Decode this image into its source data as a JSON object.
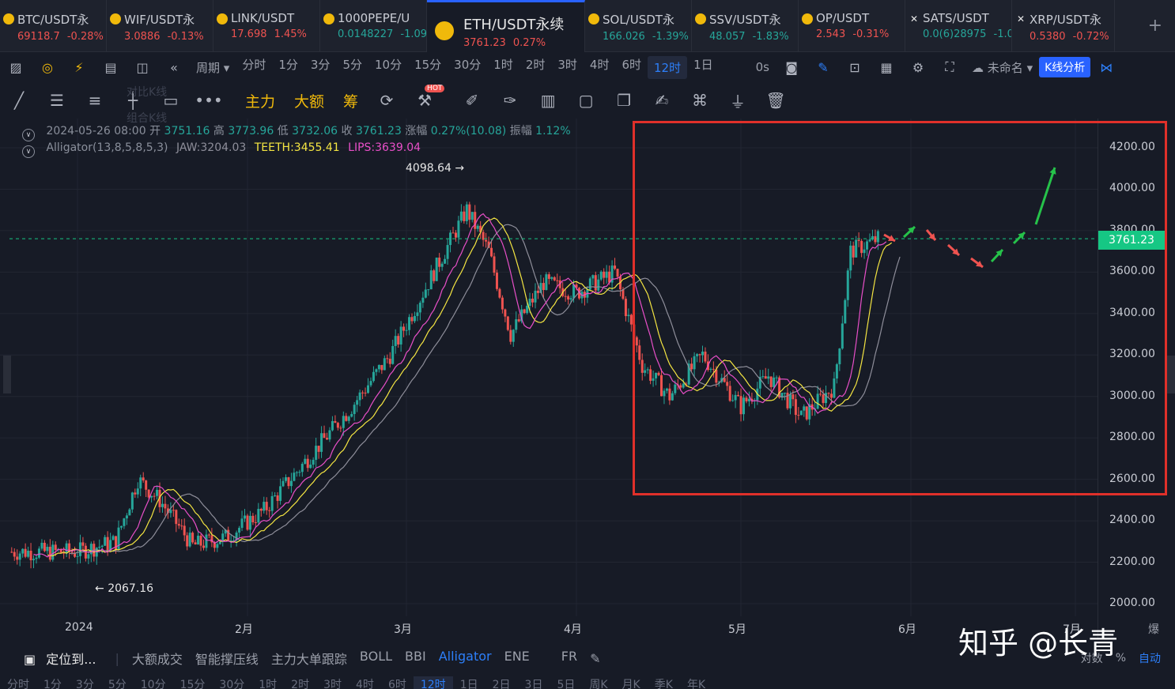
{
  "tickers": [
    {
      "name": "BTC/USDT永",
      "price": "69118.7",
      "change": "-0.28%",
      "dir": "down"
    },
    {
      "name": "WIF/USDT永",
      "price": "3.0886",
      "change": "-0.13%",
      "dir": "down"
    },
    {
      "name": "LINK/USDT",
      "price": "17.698",
      "change": "1.45%",
      "dir": "down"
    },
    {
      "name": "1000PEPE/U",
      "price": "0.0148227",
      "change": "-1.09",
      "dir": "up"
    },
    {
      "name": "ETH/USDT永续",
      "price": "3761.23",
      "change": "0.27%",
      "dir": "down"
    },
    {
      "name": "SOL/USDT永",
      "price": "166.026",
      "change": "-1.39%",
      "dir": "up"
    },
    {
      "name": "SSV/USDT永",
      "price": "48.057",
      "change": "-1.83%",
      "dir": "up"
    },
    {
      "name": "OP/USDT",
      "price": "2.543",
      "change": "-0.31%",
      "dir": "down"
    },
    {
      "name": "SATS/USDT",
      "price": "0.0(6)28975",
      "change": "-1.0",
      "dir": "up"
    },
    {
      "name": "XRP/USDT永",
      "price": "0.5380",
      "change": "-0.72%",
      "dir": "down"
    }
  ],
  "add_tab": "+",
  "toolbar1": {
    "period_label": "周期",
    "periods": [
      "分时",
      "1分",
      "3分",
      "5分",
      "10分",
      "15分",
      "30分",
      "1时",
      "2时",
      "3时",
      "4时",
      "6时",
      "12时",
      "1日"
    ],
    "selected_period": "12时",
    "countdown": "0s",
    "layout_name": "未命名",
    "kline_analysis": "K线分析"
  },
  "toolbar2": {
    "main_force": "主力",
    "big_amount": "大额",
    "chip": "筹",
    "hot": "HOT"
  },
  "ghost_labels": {
    "compare": "对比K线",
    "combo": "组合K线"
  },
  "ohlc": {
    "date": "2024-05-26 08:00",
    "open_label": "开",
    "open": "3751.16",
    "high_label": "高",
    "high": "3773.96",
    "low_label": "低",
    "low": "3732.06",
    "close_label": "收",
    "close": "3761.23",
    "change_label": "涨幅",
    "change": "0.27%(10.08)",
    "amp_label": "振幅",
    "amp": "1.12%"
  },
  "alligator": {
    "name": "Alligator(13,8,5,8,5,3)",
    "jaw": "JAW:3204.03",
    "teeth": "TEETH:3455.41",
    "lips": "LIPS:3639.04",
    "colors": {
      "jaw": "#8e8e9a",
      "teeth": "#f5e642",
      "lips": "#e84fc8"
    }
  },
  "chart_data": {
    "type": "line",
    "title": "ETH/USDT永续 12时",
    "y_ticks": [
      "4200.00",
      "4000.00",
      "3800.00",
      "3600.00",
      "3400.00",
      "3200.00",
      "3000.00",
      "2800.00",
      "2600.00",
      "2400.00",
      "2200.00",
      "2000.00"
    ],
    "x_ticks": [
      "2024",
      "2月",
      "3月",
      "4月",
      "5月",
      "6月",
      "7月"
    ],
    "current_price": "3761.23",
    "high_marker": "4098.64",
    "low_marker": "2067.16",
    "ylim": [
      2000,
      4200
    ],
    "x": [
      "2024-01-01",
      "2024-01-08",
      "2024-01-12",
      "2024-01-16",
      "2024-01-22",
      "2024-01-28",
      "2024-02-04",
      "2024-02-12",
      "2024-02-20",
      "2024-02-27",
      "2024-03-04",
      "2024-03-12",
      "2024-03-16",
      "2024-03-20",
      "2024-03-26",
      "2024-04-01",
      "2024-04-08",
      "2024-04-13",
      "2024-04-18",
      "2024-04-24",
      "2024-05-01",
      "2024-05-06",
      "2024-05-12",
      "2024-05-18",
      "2024-05-21",
      "2024-05-26"
    ],
    "series": [
      {
        "name": "close",
        "values": [
          2250,
          2300,
          2600,
          2500,
          2280,
          2320,
          2450,
          2700,
          2950,
          3200,
          3500,
          3900,
          3700,
          3300,
          3550,
          3500,
          3600,
          3150,
          3000,
          3200,
          2950,
          3100,
          2900,
          3050,
          3700,
          3761
        ]
      }
    ]
  },
  "bottom_bar": {
    "locate": "定位到...",
    "indicators": [
      "大额成交",
      "智能撑压线",
      "主力大单跟踪",
      "BOLL",
      "BBI",
      "Alligator",
      "ENE",
      "FR"
    ],
    "selected": "Alligator",
    "log_label": "对数",
    "pct_label": "%",
    "auto_label": "自动",
    "burst_label": "爆"
  },
  "bottom_bar2": [
    "分时",
    "1分",
    "3分",
    "5分",
    "10分",
    "15分",
    "30分",
    "1时",
    "2时",
    "3时",
    "4时",
    "6时",
    "12时",
    "1日",
    "2日",
    "3日",
    "5日",
    "周K",
    "月K",
    "季K",
    "年K"
  ],
  "bottom_bar2_selected": "12时",
  "watermark": "知乎 @长青"
}
